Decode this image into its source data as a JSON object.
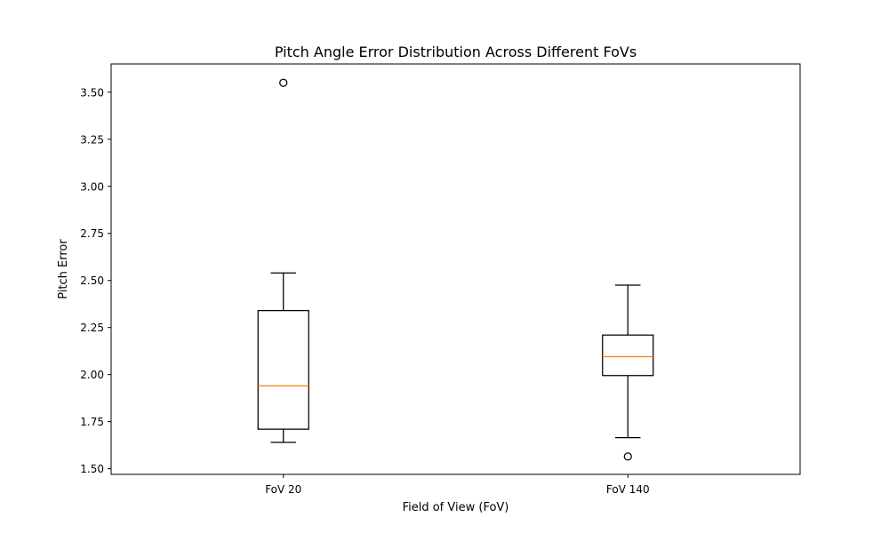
{
  "chart_data": {
    "type": "box",
    "title": "Pitch Angle Error Distribution Across Different FoVs",
    "xlabel": "Field of View (FoV)",
    "ylabel": "Pitch Error",
    "ylim": [
      1.47,
      3.65
    ],
    "yticks": [
      1.5,
      1.75,
      2.0,
      2.25,
      2.5,
      2.75,
      3.0,
      3.25,
      3.5
    ],
    "ytick_labels": [
      "1.50",
      "1.75",
      "2.00",
      "2.25",
      "2.50",
      "2.75",
      "3.00",
      "3.25",
      "3.50"
    ],
    "categories": [
      "FoV 20",
      "FoV 140"
    ],
    "boxes": [
      {
        "whisker_low": 1.64,
        "q1": 1.71,
        "median": 1.94,
        "q3": 2.34,
        "whisker_high": 2.54,
        "outliers": [
          3.55
        ]
      },
      {
        "whisker_low": 1.665,
        "q1": 1.995,
        "median": 2.095,
        "q3": 2.21,
        "whisker_high": 2.475,
        "outliers": [
          1.565
        ]
      }
    ],
    "grid": false,
    "colors": {
      "box": "#000000",
      "median": "#ff7f0e",
      "background": "#ffffff"
    }
  }
}
